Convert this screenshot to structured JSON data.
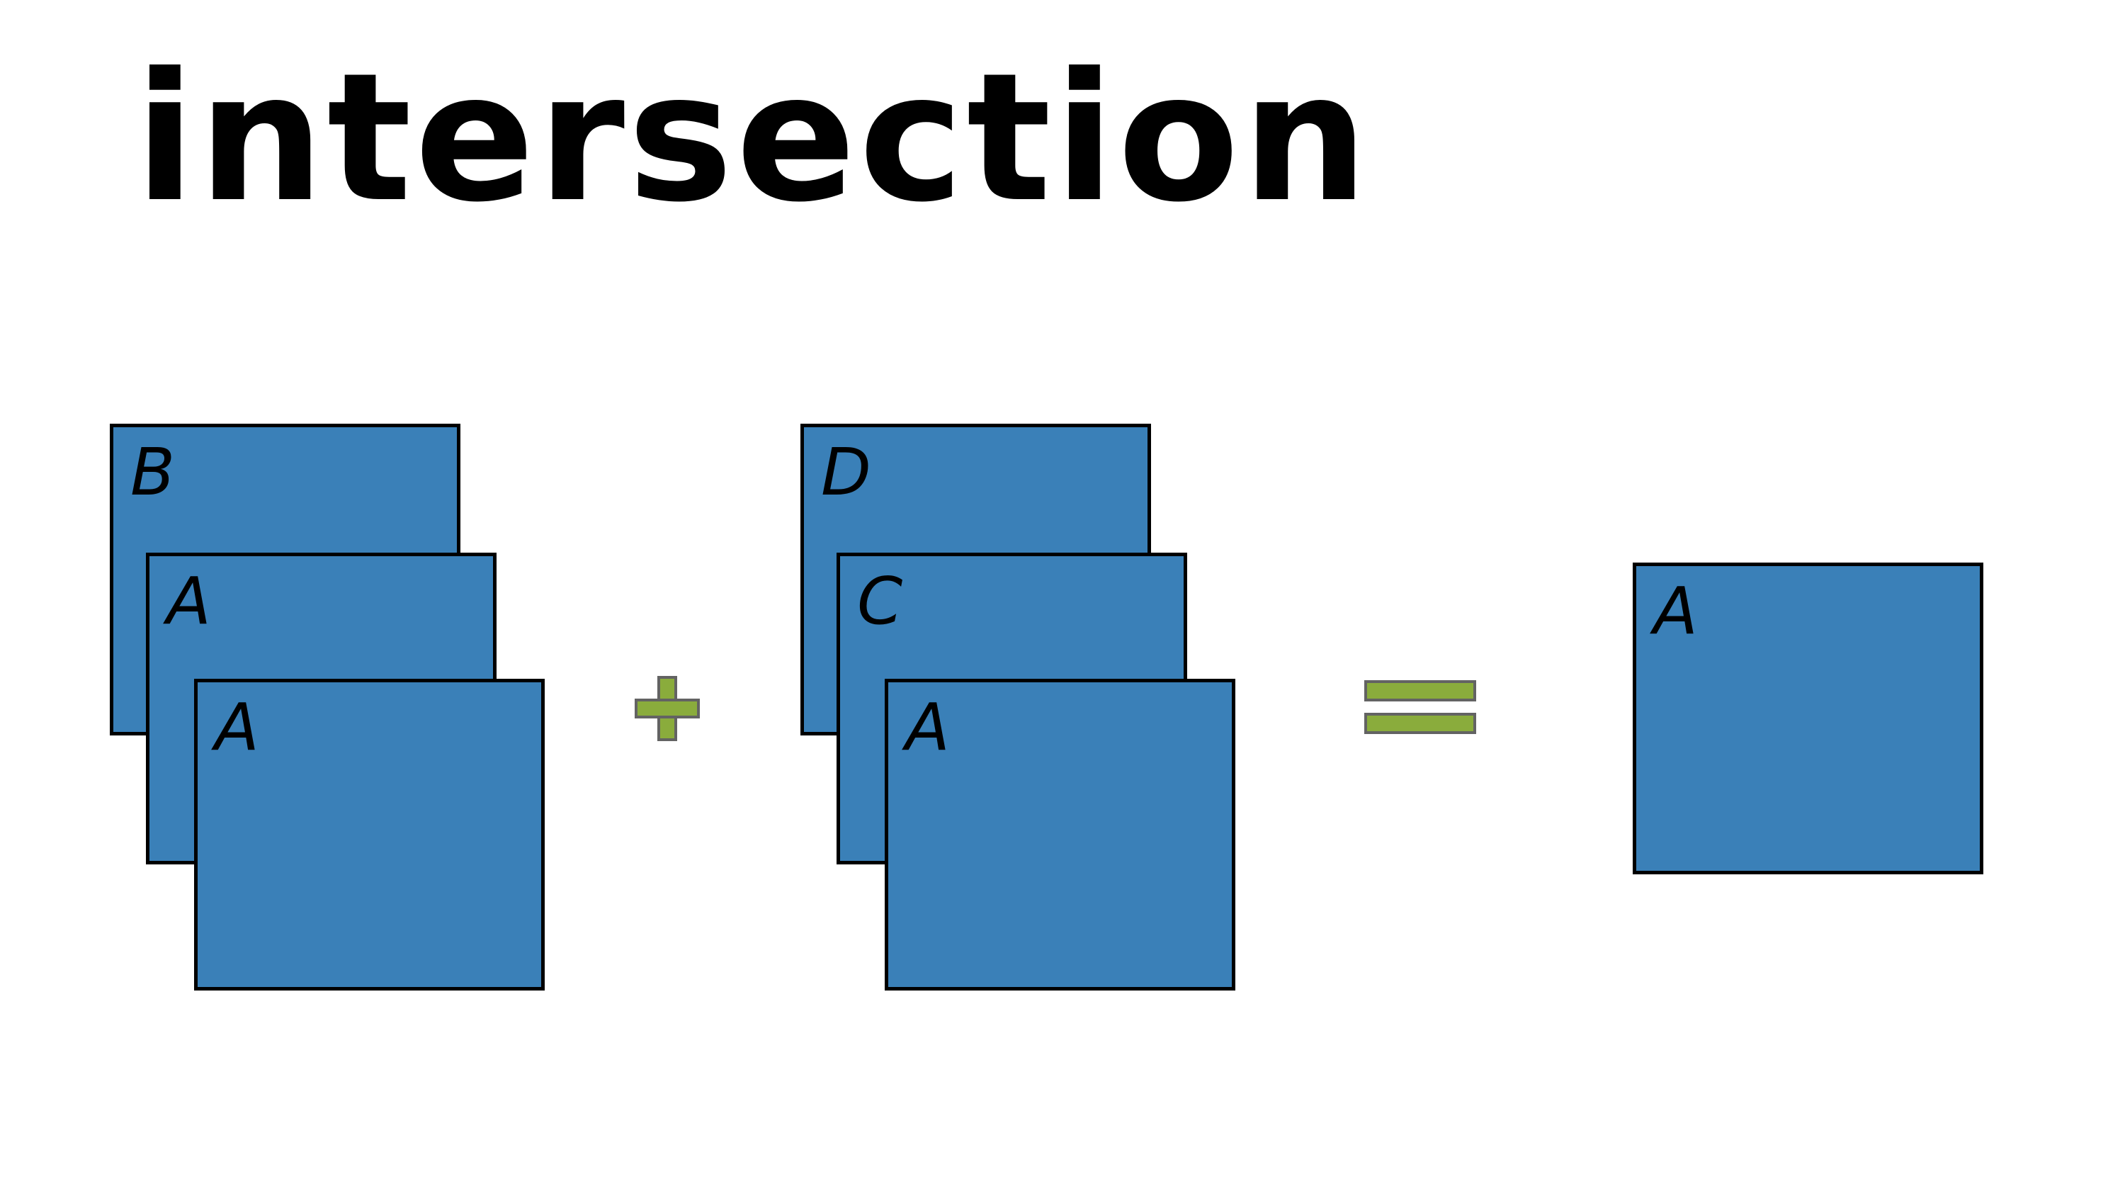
{
  "title": "intersection",
  "left_group": {
    "cards": [
      {
        "label": "B"
      },
      {
        "label": "A"
      },
      {
        "label": "A"
      }
    ]
  },
  "operators": {
    "plus": "+",
    "equals": "="
  },
  "right_group": {
    "cards": [
      {
        "label": "D"
      },
      {
        "label": "C"
      },
      {
        "label": "A"
      }
    ]
  },
  "result": {
    "cards": [
      {
        "label": "A"
      }
    ]
  },
  "colors": {
    "card_fill": "#3a80b8",
    "card_border": "#000000",
    "operator_fill": "#8aac3c",
    "operator_border": "#636363"
  }
}
